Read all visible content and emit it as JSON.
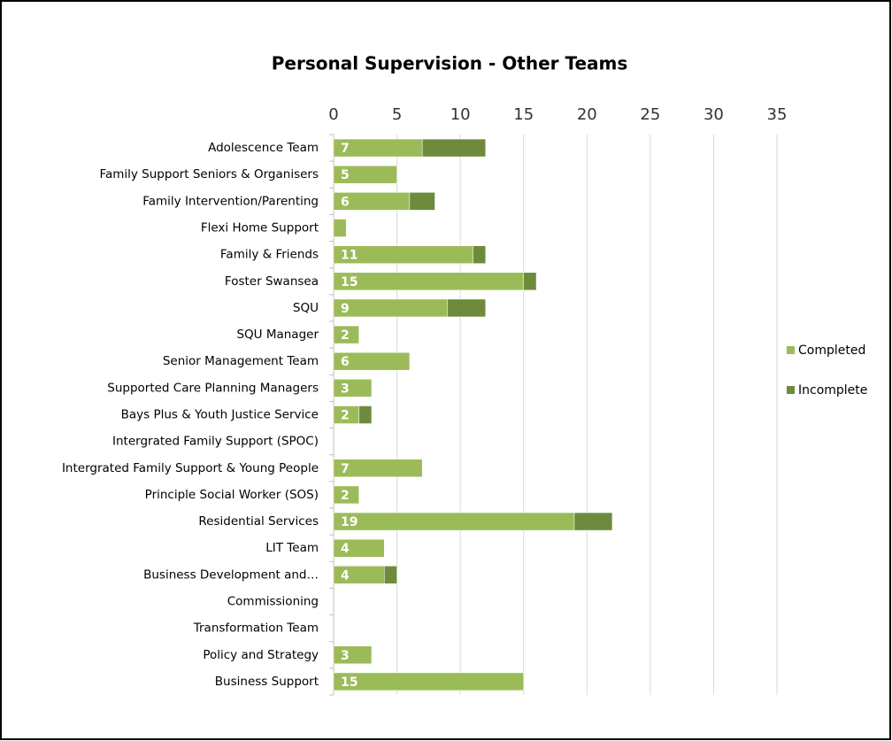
{
  "chart_data": {
    "type": "stacked_barh",
    "title": "Personal Supervision - Other Teams",
    "categories": [
      "Adolescence Team",
      "Family Support Seniors & Organisers",
      "Family Intervention/Parenting",
      "Flexi Home Support",
      "Family & Friends",
      "Foster Swansea",
      "SQU",
      "SQU Manager",
      "Senior Management Team",
      "Supported Care Planning Managers",
      "Bays Plus & Youth Justice Service",
      "Intergrated Family Support (SPOC)",
      "Intergrated Family Support & Young People",
      "Principle Social Worker (SOS)",
      "Residential Services",
      "LIT Team",
      "Business Development and…",
      "Commissioning",
      "Transformation Team",
      "Policy and Strategy",
      "Business Support"
    ],
    "series": [
      {
        "name": "Completed",
        "color": "#9bbb59",
        "values": [
          7,
          5,
          6,
          1,
          11,
          15,
          9,
          2,
          6,
          3,
          2,
          0,
          7,
          2,
          19,
          4,
          4,
          0,
          0,
          3,
          15
        ]
      },
      {
        "name": "Incomplete",
        "color": "#6e8b3d",
        "values": [
          5,
          0,
          2,
          0,
          1,
          1,
          3,
          0,
          0,
          0,
          1,
          0,
          0,
          0,
          3,
          0,
          1,
          0,
          0,
          0,
          0
        ]
      }
    ],
    "xlim": [
      0,
      35
    ],
    "xticks": [
      0,
      5,
      10,
      15,
      20,
      25,
      30,
      35
    ],
    "grid": true,
    "legend": "right"
  }
}
